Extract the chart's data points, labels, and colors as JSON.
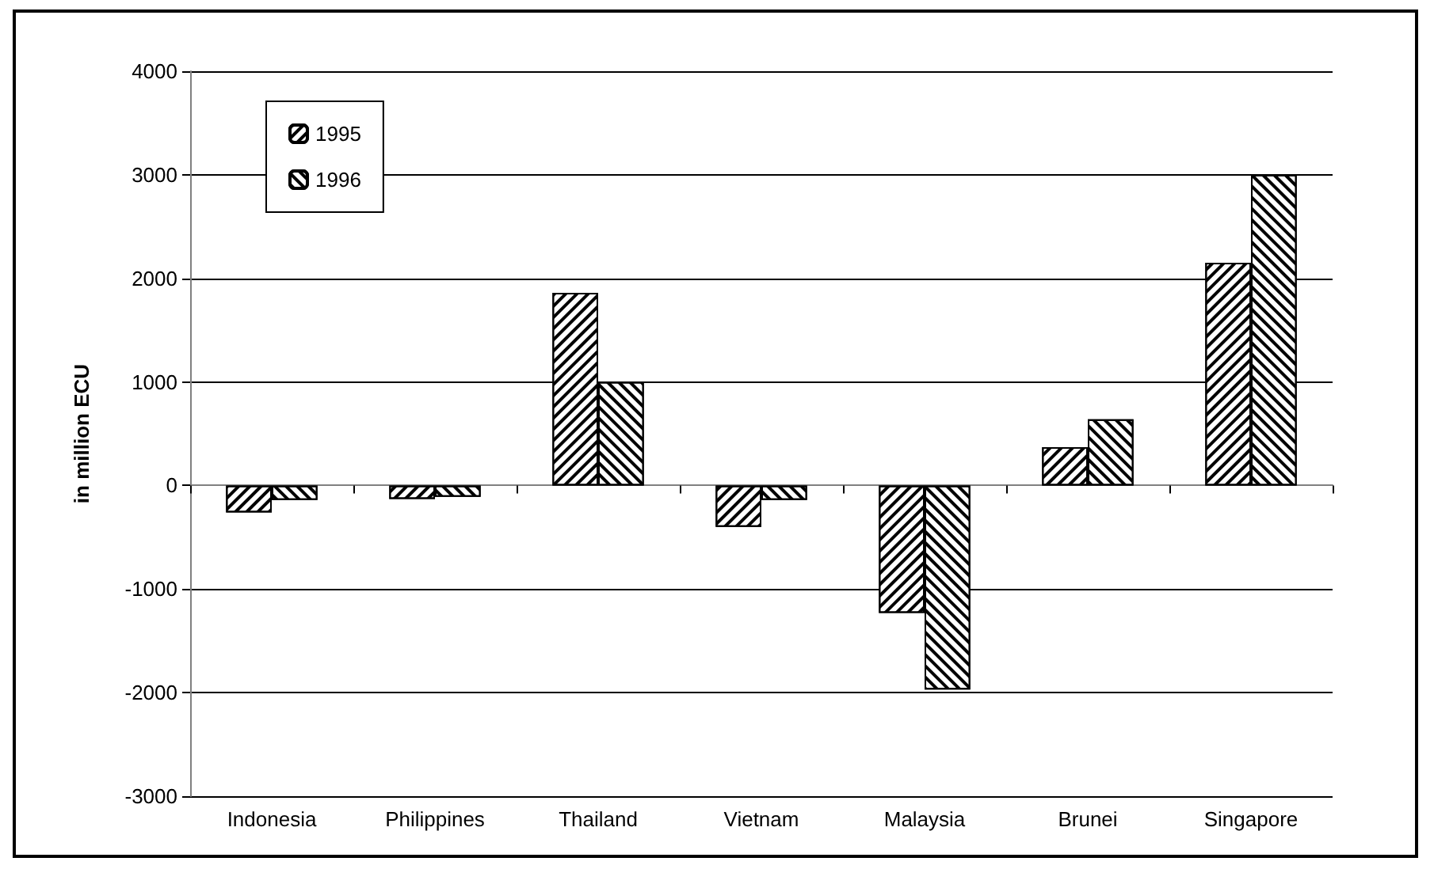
{
  "chart_data": {
    "type": "bar",
    "ylabel": "in million ECU",
    "categories": [
      "Indonesia",
      "Philippines",
      "Thailand",
      "Vietnam",
      "Malaysia",
      "Brunei",
      "Singapore"
    ],
    "series": [
      {
        "name": "1995",
        "color": "#000000",
        "values": [
          -260,
          -130,
          1860,
          -400,
          -1230,
          370,
          2150
        ]
      },
      {
        "name": "1996",
        "color": "#000000",
        "values": [
          -140,
          -110,
          1000,
          -140,
          -1970,
          640,
          3000
        ]
      }
    ],
    "ylim": [
      -3000,
      4000
    ],
    "yticks": [
      -3000,
      -2000,
      -1000,
      0,
      1000,
      2000,
      3000,
      4000
    ],
    "grid": "y",
    "legend": "top left"
  }
}
